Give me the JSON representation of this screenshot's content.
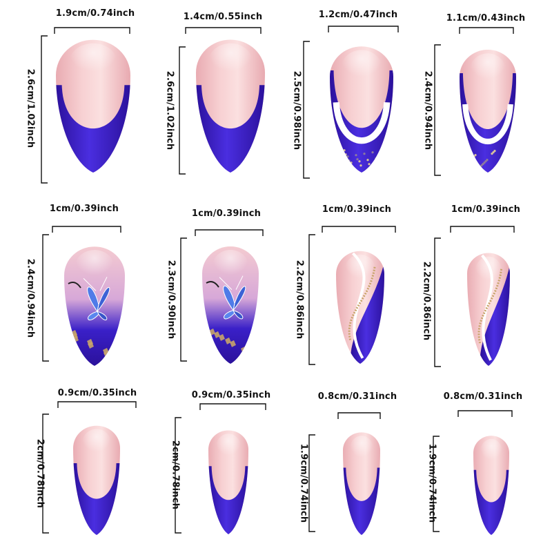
{
  "colors": {
    "pink": "#f4c4c8",
    "pink_light": "#fbe2e2",
    "blue": "#3a20c8",
    "blue_dark": "#2a1099",
    "white_stripe": "#ffffff",
    "gold": "#c8a46a",
    "bracket": "#111111"
  },
  "nails": [
    {
      "width_label": "1.9cm/0.74inch",
      "height_label": "2.6cm/1.02inch",
      "design": "french"
    },
    {
      "width_label": "1.4cm/0.55inch",
      "height_label": "2.6cm/1.02inch",
      "design": "french"
    },
    {
      "width_label": "1.2cm/0.47inch",
      "height_label": "2.5cm/0.98inch",
      "design": "glitter-french"
    },
    {
      "width_label": "1.1cm/0.43inch",
      "height_label": "2.4cm/0.94inch",
      "design": "glitter-french"
    },
    {
      "width_label": "1cm/0.39inch",
      "height_label": "2.4cm/0.94inch",
      "design": "butterfly"
    },
    {
      "width_label": "1cm/0.39inch",
      "height_label": "2.3cm/0.90inch",
      "design": "butterfly"
    },
    {
      "width_label": "1cm/0.39inch",
      "height_label": "2.2cm/0.86inch",
      "design": "swirl"
    },
    {
      "width_label": "1cm/0.39inch",
      "height_label": "2.2cm/0.86inch",
      "design": "swirl"
    },
    {
      "width_label": "0.9cm/0.35inch",
      "height_label": "2cm/0.78inch",
      "design": "french"
    },
    {
      "width_label": "0.9cm/0.35inch",
      "height_label": "2cm/0.78inch",
      "design": "french"
    },
    {
      "width_label": "0.8cm/0.31inch",
      "height_label": "1.9cm/0.74inch",
      "design": "french"
    },
    {
      "width_label": "0.8cm/0.31inch",
      "height_label": "1.9cm/0.74inch",
      "design": "french"
    }
  ]
}
